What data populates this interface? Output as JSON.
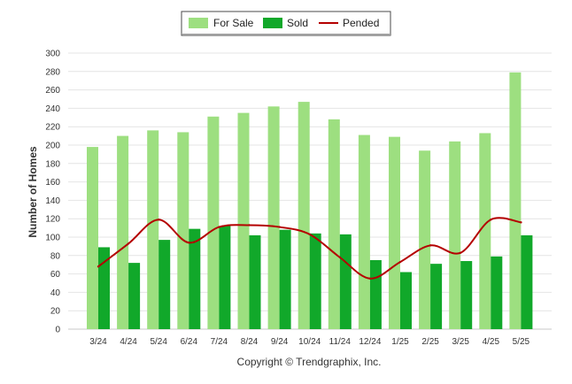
{
  "chart_data": {
    "type": "bar",
    "categories": [
      "3/24",
      "4/24",
      "5/24",
      "6/24",
      "7/24",
      "8/24",
      "9/24",
      "10/24",
      "11/24",
      "12/24",
      "1/25",
      "2/25",
      "3/25",
      "4/25",
      "5/25"
    ],
    "series": [
      {
        "name": "For Sale",
        "type": "bar",
        "color": "#9ddf80",
        "values": [
          198,
          210,
          216,
          214,
          231,
          235,
          242,
          247,
          228,
          211,
          209,
          194,
          204,
          213,
          279
        ]
      },
      {
        "name": "Sold",
        "type": "bar",
        "color": "#11a82a",
        "values": [
          89,
          72,
          97,
          109,
          112,
          102,
          108,
          104,
          103,
          75,
          62,
          71,
          74,
          79,
          102
        ]
      },
      {
        "name": "Pended",
        "type": "line",
        "color": "#b40000",
        "values": [
          68,
          93,
          119,
          94,
          111,
          113,
          111,
          103,
          78,
          55,
          73,
          91,
          83,
          119,
          116
        ]
      }
    ],
    "ylabel": "Number of Homes",
    "ylim": [
      0,
      300
    ],
    "yticks": [
      0,
      20,
      40,
      60,
      80,
      100,
      120,
      140,
      160,
      180,
      200,
      220,
      240,
      260,
      280,
      300
    ],
    "grid": true,
    "legend_position": "top-center"
  },
  "credit": "Copyright © Trendgraphix, Inc."
}
